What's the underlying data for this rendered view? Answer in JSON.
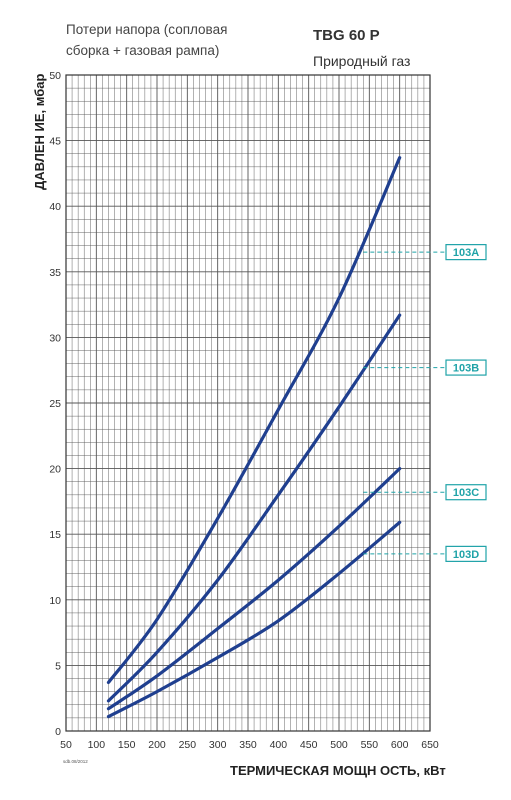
{
  "header": {
    "subtitle_line1": "Потери напора (сопловая",
    "subtitle_line2": "сборка + газовая рампа)",
    "model": "TBG 60 P",
    "fuel": "Природный газ"
  },
  "footnote": "sdb.08/2012",
  "colors": {
    "curve": "#1f3f8f",
    "grid": "#555555",
    "accent": "#1fa3a8"
  },
  "chart_data": {
    "type": "line",
    "title": "TBG 60 P",
    "xlabel": "ТЕРМИЧЕСКАЯ МОЩН ОСТЬ, кВт",
    "ylabel": "ДАВЛЕН ИЕ, мбар",
    "xlim": [
      50,
      650
    ],
    "ylim": [
      0,
      50
    ],
    "x_minor_step": 10,
    "y_minor_step": 1,
    "x_ticks": [
      50,
      100,
      150,
      200,
      250,
      300,
      350,
      400,
      450,
      500,
      550,
      600,
      650
    ],
    "y_ticks": [
      0,
      5,
      10,
      15,
      20,
      25,
      30,
      35,
      40,
      45,
      50
    ],
    "x_tick_labels": [
      "50",
      "100",
      "150",
      "200",
      "250",
      "300",
      "350",
      "400",
      "450",
      "500",
      "550",
      "600",
      "650"
    ],
    "y_tick_labels": [
      "0",
      "5",
      "10",
      "15",
      "20",
      "25",
      "30",
      "35",
      "40",
      "45",
      "50"
    ],
    "grid": true,
    "series": [
      {
        "name": "103A",
        "x": [
          120,
          200,
          300,
          400,
          500,
          600
        ],
        "y": [
          3.7,
          8.5,
          16.2,
          24.5,
          33.0,
          43.7
        ],
        "tag_y": 36.5
      },
      {
        "name": "103B",
        "x": [
          120,
          200,
          300,
          400,
          500,
          600
        ],
        "y": [
          2.3,
          6.0,
          11.5,
          18.0,
          24.7,
          31.7
        ],
        "tag_y": 27.7
      },
      {
        "name": "103C",
        "x": [
          120,
          200,
          300,
          400,
          500,
          600
        ],
        "y": [
          1.7,
          4.2,
          7.8,
          11.5,
          15.6,
          20.0
        ],
        "tag_y": 18.2
      },
      {
        "name": "103D",
        "x": [
          120,
          200,
          300,
          400,
          500,
          600
        ],
        "y": [
          1.1,
          3.0,
          5.6,
          8.4,
          12.0,
          15.9
        ],
        "tag_y": 13.5
      }
    ]
  }
}
